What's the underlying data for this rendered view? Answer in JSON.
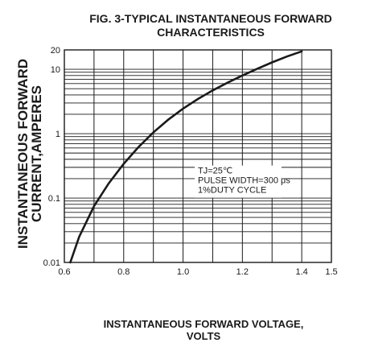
{
  "chart_data": {
    "type": "line",
    "title_lines": [
      "FIG. 3-TYPICAL INSTANTANEOUS FORWARD",
      "CHARACTERISTICS"
    ],
    "ylabel_lines": [
      "INSTANTANEOUS FORWARD",
      "CURRENT,AMPERES"
    ],
    "xlabel_lines": [
      "INSTANTANEOUS FORWARD VOLTAGE,",
      "VOLTS"
    ],
    "xlim": [
      0.6,
      1.5
    ],
    "ylim": [
      0.01,
      20
    ],
    "yscale": "log",
    "grid": true,
    "x_ticks": [
      "0.6",
      "0.8",
      "1.0",
      "1.2",
      "1.4",
      "1.5"
    ],
    "x_tick_values": [
      0.6,
      0.8,
      1.0,
      1.2,
      1.4,
      1.5
    ],
    "y_ticks": [
      "0.01",
      "0.1",
      "1",
      "10",
      "20"
    ],
    "y_tick_values": [
      0.01,
      0.1,
      1,
      10,
      20
    ],
    "annotation": [
      "TJ=25℃",
      "PULSE WIDTH=300 μs",
      "1%DUTY CYCLE"
    ],
    "series": [
      {
        "x": [
          0.62,
          0.65,
          0.7,
          0.75,
          0.8,
          0.85,
          0.9,
          0.95,
          1.0,
          1.05,
          1.1,
          1.15,
          1.2,
          1.25,
          1.3,
          1.35,
          1.4
        ],
        "y": [
          0.01,
          0.025,
          0.075,
          0.17,
          0.34,
          0.62,
          1.05,
          1.65,
          2.45,
          3.45,
          4.7,
          6.2,
          8.0,
          10.2,
          12.8,
          15.8,
          19.0
        ]
      }
    ]
  }
}
